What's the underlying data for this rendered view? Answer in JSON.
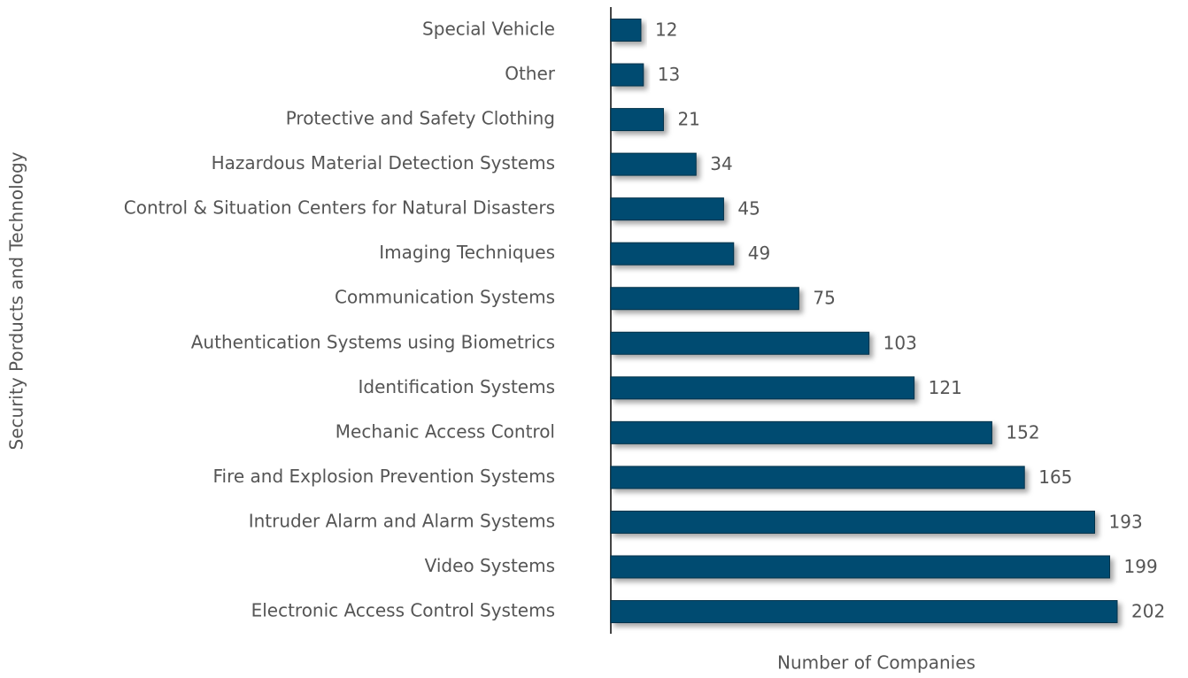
{
  "chart_data": {
    "type": "bar",
    "orientation": "horizontal",
    "xlabel": "Number of Companies",
    "ylabel": "Security Porducts and Technology",
    "categories": [
      "Special Vehicle",
      "Other",
      "Protective and Safety Clothing",
      "Hazardous Material Detection Systems",
      "Control & Situation Centers for Natural Disasters",
      "Imaging Techniques",
      "Communication Systems",
      "Authentication Systems using Biometrics",
      "Identification Systems",
      "Mechanic Access Control",
      "Fire and Explosion Prevention Systems",
      "Intruder Alarm and Alarm Systems",
      "Video Systems",
      "Electronic Access Control Systems"
    ],
    "values": [
      12,
      13,
      21,
      34,
      45,
      49,
      75,
      103,
      121,
      152,
      165,
      193,
      199,
      202
    ],
    "color": "#024b71"
  }
}
